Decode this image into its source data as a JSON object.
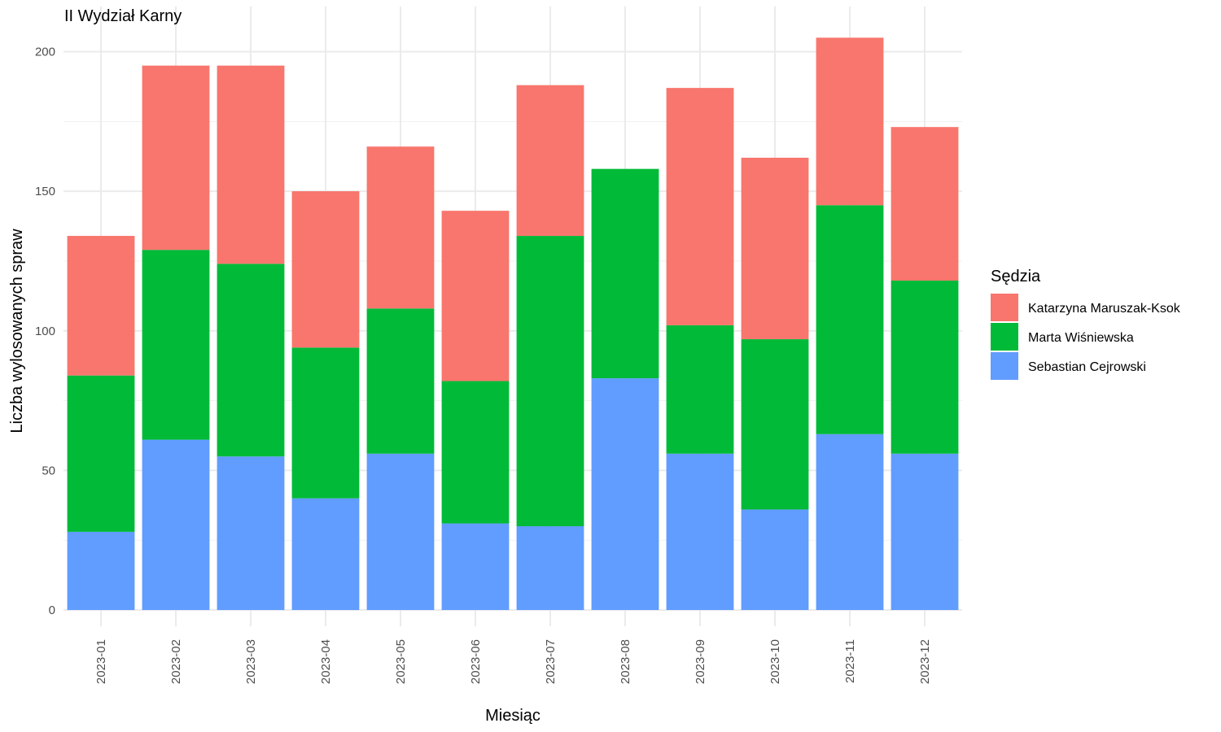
{
  "chart_data": {
    "type": "bar",
    "stacked": true,
    "title": "II Wydział Karny",
    "xlabel": "Miesiąc",
    "ylabel": "Liczba wylosowanych spraw",
    "ylim": [
      0,
      205
    ],
    "yticks": [
      0,
      50,
      100,
      150,
      200
    ],
    "grid": true,
    "legend": {
      "title": "Sędzia",
      "placement": "right"
    },
    "categories": [
      "2023-01",
      "2023-02",
      "2023-03",
      "2023-04",
      "2023-05",
      "2023-06",
      "2023-07",
      "2023-08",
      "2023-09",
      "2023-10",
      "2023-11",
      "2023-12"
    ],
    "series": [
      {
        "name": "Sebastian Cejrowski",
        "color": "#619CFF",
        "values": [
          28,
          61,
          55,
          40,
          56,
          31,
          30,
          83,
          56,
          36,
          63,
          56
        ]
      },
      {
        "name": "Marta Wiśniewska",
        "color": "#00BA38",
        "values": [
          56,
          68,
          69,
          54,
          52,
          51,
          104,
          75,
          46,
          61,
          82,
          62
        ]
      },
      {
        "name": "Katarzyna Maruszak-Ksok",
        "color": "#F8766D",
        "values": [
          50,
          66,
          71,
          56,
          58,
          61,
          54,
          0,
          85,
          65,
          60,
          55
        ]
      }
    ],
    "legend_order": [
      "Katarzyna Maruszak-Ksok",
      "Marta Wiśniewska",
      "Sebastian Cejrowski"
    ]
  }
}
